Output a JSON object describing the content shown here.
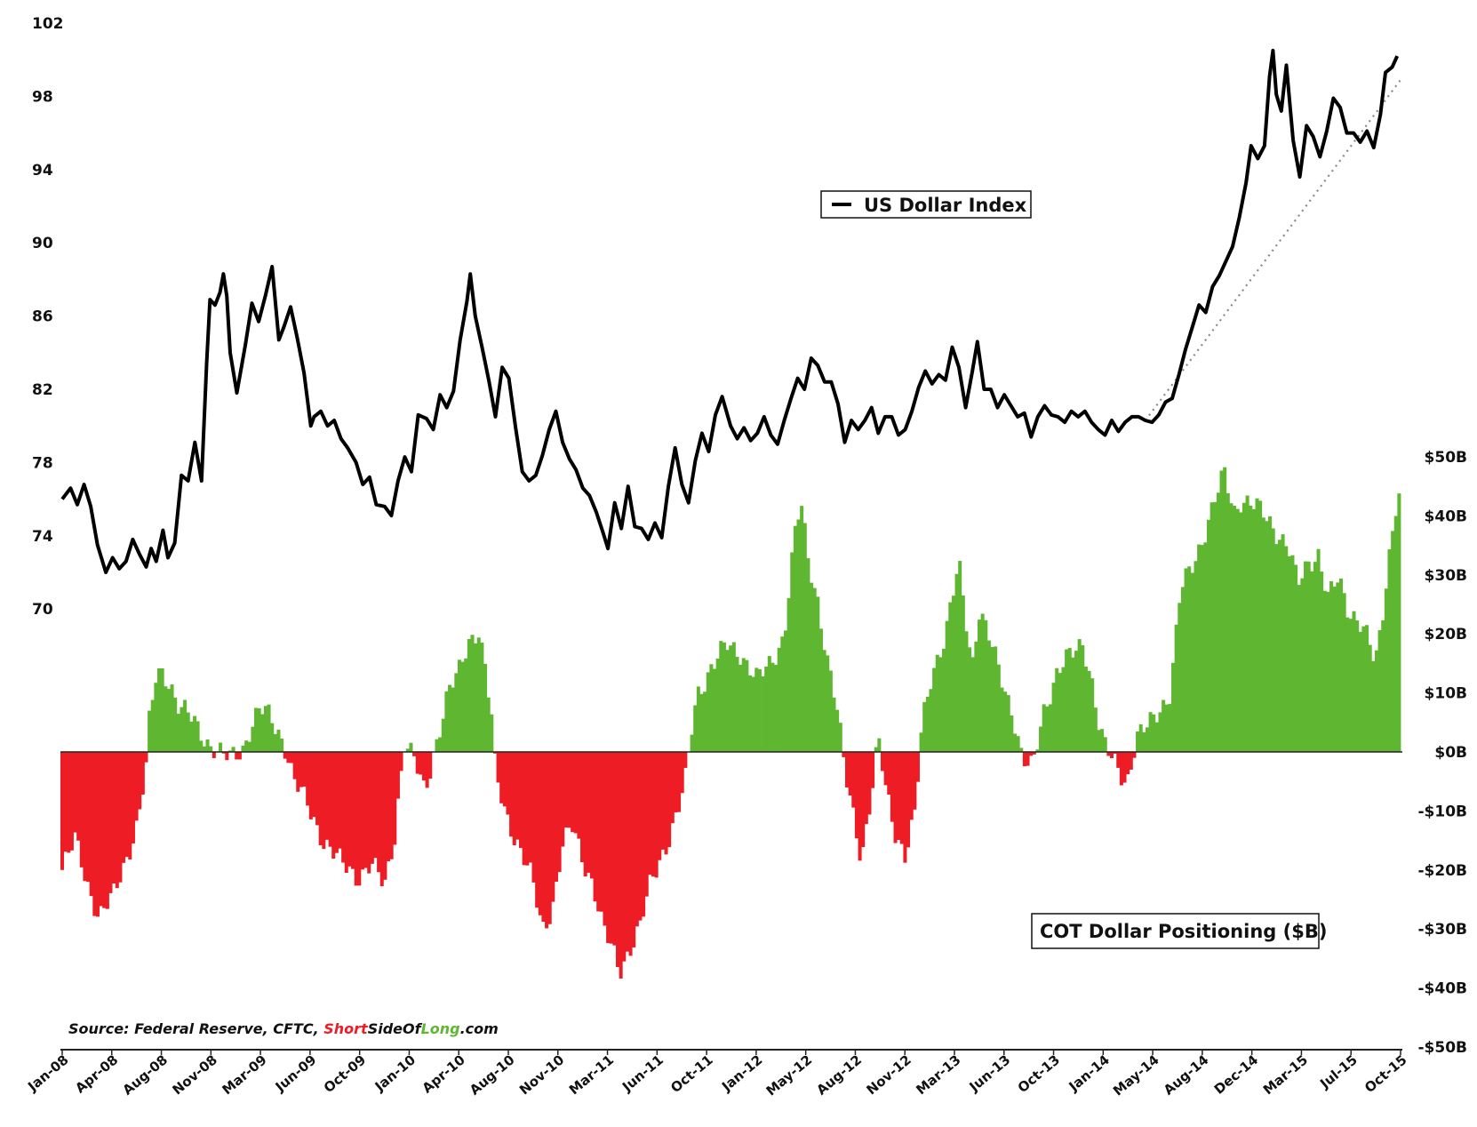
{
  "source": {
    "prefix": "Source: Federal Reserve, CFTC, ",
    "brand_part1": "Short",
    "brand_part2": "SideOf",
    "brand_part3": "Long",
    "brand_part4": ".com"
  },
  "colors": {
    "line": "#000000",
    "positive_bar": "#5fb731",
    "negative_bar": "#ee1c25",
    "trend": "#888888",
    "brand_red": "#ee1c25",
    "brand_green": "#5fb731"
  },
  "chart_data": {
    "type": "line+bar",
    "legend_line": "US Dollar Index",
    "legend_bar": "COT Dollar Positioning ($B)",
    "x_ticks": [
      "Jan-08",
      "Apr-08",
      "Aug-08",
      "Nov-08",
      "Mar-09",
      "Jun-09",
      "Oct-09",
      "Jan-10",
      "Apr-10",
      "Aug-10",
      "Nov-10",
      "Mar-11",
      "Jun-11",
      "Oct-11",
      "Jan-12",
      "May-12",
      "Aug-12",
      "Nov-12",
      "Mar-13",
      "Jun-13",
      "Oct-13",
      "Jan-14",
      "May-14",
      "Aug-14",
      "Dec-14",
      "Mar-15",
      "Jul-15",
      "Oct-15"
    ],
    "y_left_ticks": [
      "102",
      "98",
      "94",
      "90",
      "86",
      "82",
      "78",
      "74",
      "70"
    ],
    "y_left_range": [
      70,
      102
    ],
    "y_right_ticks": [
      "$50B",
      "$40B",
      "$30B",
      "$20B",
      "$10B",
      "$0B",
      "-$10B",
      "-$20B",
      "-$30B",
      "-$40B",
      "-$50B"
    ],
    "y_right_range": [
      -50,
      50
    ],
    "trend_line": {
      "from": {
        "x": 2014.45,
        "y": 80.3
      },
      "to": {
        "x": 2015.97,
        "y": 98.9
      }
    },
    "dollar_index": [
      [
        2008.0,
        76.0
      ],
      [
        2008.05,
        76.6
      ],
      [
        2008.09,
        75.7
      ],
      [
        2008.13,
        76.8
      ],
      [
        2008.17,
        75.6
      ],
      [
        2008.21,
        73.5
      ],
      [
        2008.26,
        72.0
      ],
      [
        2008.3,
        72.8
      ],
      [
        2008.34,
        72.2
      ],
      [
        2008.38,
        72.6
      ],
      [
        2008.42,
        73.8
      ],
      [
        2008.46,
        73.0
      ],
      [
        2008.5,
        72.3
      ],
      [
        2008.53,
        73.3
      ],
      [
        2008.56,
        72.6
      ],
      [
        2008.6,
        74.3
      ],
      [
        2008.63,
        72.8
      ],
      [
        2008.67,
        73.6
      ],
      [
        2008.71,
        77.3
      ],
      [
        2008.75,
        77.0
      ],
      [
        2008.79,
        79.1
      ],
      [
        2008.83,
        77.0
      ],
      [
        2008.86,
        83.4
      ],
      [
        2008.88,
        86.9
      ],
      [
        2008.91,
        86.6
      ],
      [
        2008.94,
        87.3
      ],
      [
        2008.96,
        88.3
      ],
      [
        2008.98,
        87.1
      ],
      [
        2009.0,
        84.0
      ],
      [
        2009.04,
        81.8
      ],
      [
        2009.09,
        84.4
      ],
      [
        2009.13,
        86.7
      ],
      [
        2009.17,
        85.7
      ],
      [
        2009.21,
        87.1
      ],
      [
        2009.25,
        88.7
      ],
      [
        2009.29,
        84.7
      ],
      [
        2009.32,
        85.4
      ],
      [
        2009.36,
        86.5
      ],
      [
        2009.4,
        84.8
      ],
      [
        2009.44,
        82.9
      ],
      [
        2009.48,
        80.0
      ],
      [
        2009.5,
        80.5
      ],
      [
        2009.54,
        80.8
      ],
      [
        2009.58,
        80.0
      ],
      [
        2009.62,
        80.3
      ],
      [
        2009.66,
        79.3
      ],
      [
        2009.7,
        78.8
      ],
      [
        2009.75,
        78.0
      ],
      [
        2009.79,
        76.8
      ],
      [
        2009.83,
        77.2
      ],
      [
        2009.87,
        75.7
      ],
      [
        2009.92,
        75.6
      ],
      [
        2009.96,
        75.1
      ],
      [
        2010.0,
        77.0
      ],
      [
        2010.04,
        78.3
      ],
      [
        2010.08,
        77.5
      ],
      [
        2010.12,
        80.6
      ],
      [
        2010.17,
        80.4
      ],
      [
        2010.21,
        79.8
      ],
      [
        2010.25,
        81.7
      ],
      [
        2010.29,
        81.0
      ],
      [
        2010.33,
        81.9
      ],
      [
        2010.37,
        84.7
      ],
      [
        2010.41,
        86.8
      ],
      [
        2010.43,
        88.3
      ],
      [
        2010.46,
        86.0
      ],
      [
        2010.5,
        84.3
      ],
      [
        2010.54,
        82.5
      ],
      [
        2010.58,
        80.5
      ],
      [
        2010.62,
        83.2
      ],
      [
        2010.66,
        82.6
      ],
      [
        2010.7,
        79.9
      ],
      [
        2010.74,
        77.5
      ],
      [
        2010.78,
        77.0
      ],
      [
        2010.82,
        77.3
      ],
      [
        2010.86,
        78.4
      ],
      [
        2010.9,
        79.8
      ],
      [
        2010.94,
        80.8
      ],
      [
        2010.98,
        79.1
      ],
      [
        2011.02,
        78.2
      ],
      [
        2011.06,
        77.6
      ],
      [
        2011.1,
        76.6
      ],
      [
        2011.14,
        76.2
      ],
      [
        2011.18,
        75.3
      ],
      [
        2011.22,
        74.2
      ],
      [
        2011.25,
        73.3
      ],
      [
        2011.29,
        75.8
      ],
      [
        2011.33,
        74.4
      ],
      [
        2011.37,
        76.7
      ],
      [
        2011.41,
        74.5
      ],
      [
        2011.45,
        74.4
      ],
      [
        2011.49,
        73.8
      ],
      [
        2011.53,
        74.7
      ],
      [
        2011.57,
        73.9
      ],
      [
        2011.61,
        76.7
      ],
      [
        2011.65,
        78.8
      ],
      [
        2011.69,
        76.8
      ],
      [
        2011.73,
        75.8
      ],
      [
        2011.77,
        78.1
      ],
      [
        2011.81,
        79.6
      ],
      [
        2011.85,
        78.6
      ],
      [
        2011.89,
        80.6
      ],
      [
        2011.93,
        81.6
      ],
      [
        2011.98,
        80.0
      ],
      [
        2012.02,
        79.3
      ],
      [
        2012.06,
        79.9
      ],
      [
        2012.1,
        79.2
      ],
      [
        2012.14,
        79.6
      ],
      [
        2012.18,
        80.5
      ],
      [
        2012.22,
        79.5
      ],
      [
        2012.26,
        79.0
      ],
      [
        2012.3,
        80.3
      ],
      [
        2012.34,
        81.5
      ],
      [
        2012.38,
        82.6
      ],
      [
        2012.42,
        82.0
      ],
      [
        2012.46,
        83.7
      ],
      [
        2012.5,
        83.3
      ],
      [
        2012.54,
        82.4
      ],
      [
        2012.58,
        82.4
      ],
      [
        2012.62,
        81.2
      ],
      [
        2012.66,
        79.1
      ],
      [
        2012.7,
        80.3
      ],
      [
        2012.74,
        79.8
      ],
      [
        2012.78,
        80.3
      ],
      [
        2012.82,
        81.0
      ],
      [
        2012.86,
        79.6
      ],
      [
        2012.9,
        80.5
      ],
      [
        2012.94,
        80.5
      ],
      [
        2012.98,
        79.5
      ],
      [
        2013.02,
        79.8
      ],
      [
        2013.06,
        80.8
      ],
      [
        2013.1,
        82.1
      ],
      [
        2013.14,
        83.0
      ],
      [
        2013.18,
        82.3
      ],
      [
        2013.22,
        82.8
      ],
      [
        2013.26,
        82.5
      ],
      [
        2013.3,
        84.3
      ],
      [
        2013.34,
        83.2
      ],
      [
        2013.38,
        81.0
      ],
      [
        2013.42,
        83.0
      ],
      [
        2013.45,
        84.6
      ],
      [
        2013.49,
        82.0
      ],
      [
        2013.53,
        82.0
      ],
      [
        2013.57,
        81.0
      ],
      [
        2013.61,
        81.7
      ],
      [
        2013.65,
        81.1
      ],
      [
        2013.69,
        80.5
      ],
      [
        2013.73,
        80.7
      ],
      [
        2013.77,
        79.4
      ],
      [
        2013.81,
        80.5
      ],
      [
        2013.85,
        81.1
      ],
      [
        2013.89,
        80.6
      ],
      [
        2013.93,
        80.5
      ],
      [
        2013.97,
        80.2
      ],
      [
        2014.01,
        80.8
      ],
      [
        2014.05,
        80.5
      ],
      [
        2014.09,
        80.8
      ],
      [
        2014.13,
        80.2
      ],
      [
        2014.17,
        79.8
      ],
      [
        2014.21,
        79.5
      ],
      [
        2014.25,
        80.3
      ],
      [
        2014.29,
        79.7
      ],
      [
        2014.33,
        80.2
      ],
      [
        2014.37,
        80.5
      ],
      [
        2014.41,
        80.5
      ],
      [
        2014.45,
        80.3
      ],
      [
        2014.49,
        80.2
      ],
      [
        2014.53,
        80.6
      ],
      [
        2014.57,
        81.3
      ],
      [
        2014.61,
        81.5
      ],
      [
        2014.65,
        82.8
      ],
      [
        2014.69,
        84.2
      ],
      [
        2014.73,
        85.4
      ],
      [
        2014.77,
        86.6
      ],
      [
        2014.81,
        86.2
      ],
      [
        2014.85,
        87.6
      ],
      [
        2014.89,
        88.2
      ],
      [
        2014.93,
        89.0
      ],
      [
        2014.97,
        89.8
      ],
      [
        2015.01,
        91.4
      ],
      [
        2015.05,
        93.3
      ],
      [
        2015.08,
        95.3
      ],
      [
        2015.12,
        94.6
      ],
      [
        2015.16,
        95.3
      ],
      [
        2015.19,
        99.1
      ],
      [
        2015.21,
        100.5
      ],
      [
        2015.23,
        98.1
      ],
      [
        2015.26,
        97.2
      ],
      [
        2015.29,
        99.7
      ],
      [
        2015.33,
        95.6
      ],
      [
        2015.37,
        93.6
      ],
      [
        2015.41,
        96.4
      ],
      [
        2015.45,
        95.8
      ],
      [
        2015.49,
        94.7
      ],
      [
        2015.53,
        96.1
      ],
      [
        2015.57,
        97.9
      ],
      [
        2015.61,
        97.4
      ],
      [
        2015.65,
        96.0
      ],
      [
        2015.69,
        96.0
      ],
      [
        2015.73,
        95.5
      ],
      [
        2015.77,
        96.1
      ],
      [
        2015.81,
        95.2
      ],
      [
        2015.85,
        97.0
      ],
      [
        2015.88,
        99.3
      ],
      [
        2015.92,
        99.6
      ],
      [
        2015.95,
        100.2
      ]
    ],
    "cot_positioning": [
      [
        2008.0,
        -20
      ],
      [
        2008.08,
        -15
      ],
      [
        2008.15,
        -22
      ],
      [
        2008.22,
        -28
      ],
      [
        2008.3,
        -25
      ],
      [
        2008.38,
        -18
      ],
      [
        2008.45,
        -12
      ],
      [
        2008.5,
        -3
      ],
      [
        2008.52,
        5
      ],
      [
        2008.56,
        13
      ],
      [
        2008.6,
        14
      ],
      [
        2008.64,
        12
      ],
      [
        2008.7,
        7
      ],
      [
        2008.76,
        6
      ],
      [
        2008.82,
        4
      ],
      [
        2008.86,
        2
      ],
      [
        2008.92,
        0
      ],
      [
        2008.96,
        -1
      ],
      [
        2009.0,
        -1
      ],
      [
        2009.04,
        0
      ],
      [
        2009.08,
        1
      ],
      [
        2009.12,
        4
      ],
      [
        2009.18,
        7
      ],
      [
        2009.24,
        6
      ],
      [
        2009.3,
        3
      ],
      [
        2009.34,
        0
      ],
      [
        2009.38,
        -5
      ],
      [
        2009.46,
        -9
      ],
      [
        2009.56,
        -15
      ],
      [
        2009.66,
        -19
      ],
      [
        2009.76,
        -21
      ],
      [
        2009.84,
        -19
      ],
      [
        2009.92,
        -23
      ],
      [
        2009.98,
        -14
      ],
      [
        2010.0,
        -8
      ],
      [
        2010.04,
        2
      ],
      [
        2010.1,
        -2
      ],
      [
        2010.16,
        -7
      ],
      [
        2010.22,
        1
      ],
      [
        2010.3,
        10
      ],
      [
        2010.36,
        13
      ],
      [
        2010.42,
        19
      ],
      [
        2010.48,
        21
      ],
      [
        2010.52,
        14
      ],
      [
        2010.56,
        5
      ],
      [
        2010.58,
        -4
      ],
      [
        2010.64,
        -10
      ],
      [
        2010.72,
        -16
      ],
      [
        2010.8,
        -22
      ],
      [
        2010.86,
        -30
      ],
      [
        2010.92,
        -26
      ],
      [
        2010.98,
        -16
      ],
      [
        2011.04,
        -13
      ],
      [
        2011.1,
        -18
      ],
      [
        2011.16,
        -22
      ],
      [
        2011.22,
        -30
      ],
      [
        2011.28,
        -34
      ],
      [
        2011.32,
        -37
      ],
      [
        2011.38,
        -33
      ],
      [
        2011.44,
        -30
      ],
      [
        2011.5,
        -23
      ],
      [
        2011.56,
        -18
      ],
      [
        2011.62,
        -14
      ],
      [
        2011.68,
        -9
      ],
      [
        2011.72,
        -4
      ],
      [
        2011.74,
        2
      ],
      [
        2011.78,
        10
      ],
      [
        2011.86,
        14
      ],
      [
        2011.96,
        18
      ],
      [
        2012.04,
        17
      ],
      [
        2012.14,
        12
      ],
      [
        2012.22,
        15
      ],
      [
        2012.3,
        20
      ],
      [
        2012.36,
        36
      ],
      [
        2012.4,
        42
      ],
      [
        2012.44,
        33
      ],
      [
        2012.5,
        26
      ],
      [
        2012.56,
        15
      ],
      [
        2012.62,
        6
      ],
      [
        2012.66,
        -3
      ],
      [
        2012.7,
        -8
      ],
      [
        2012.76,
        -18
      ],
      [
        2012.82,
        -8
      ],
      [
        2012.86,
        2
      ],
      [
        2012.9,
        -5
      ],
      [
        2012.96,
        -13
      ],
      [
        2013.02,
        -18
      ],
      [
        2013.08,
        -11
      ],
      [
        2013.12,
        5
      ],
      [
        2013.18,
        14
      ],
      [
        2013.26,
        19
      ],
      [
        2013.34,
        32
      ],
      [
        2013.42,
        15
      ],
      [
        2013.46,
        24
      ],
      [
        2013.52,
        19
      ],
      [
        2013.58,
        14
      ],
      [
        2013.66,
        7
      ],
      [
        2013.72,
        -2
      ],
      [
        2013.78,
        -3
      ],
      [
        2013.84,
        7
      ],
      [
        2013.92,
        13
      ],
      [
        2014.0,
        16
      ],
      [
        2014.08,
        19
      ],
      [
        2014.14,
        11
      ],
      [
        2014.18,
        3
      ],
      [
        2014.22,
        0
      ],
      [
        2014.28,
        -2
      ],
      [
        2014.34,
        -5
      ],
      [
        2014.4,
        2
      ],
      [
        2014.46,
        4
      ],
      [
        2014.52,
        7
      ],
      [
        2014.6,
        10
      ],
      [
        2014.66,
        27
      ],
      [
        2014.72,
        31
      ],
      [
        2014.8,
        37
      ],
      [
        2014.86,
        42
      ],
      [
        2014.92,
        47
      ],
      [
        2014.98,
        41
      ],
      [
        2015.02,
        43
      ],
      [
        2015.08,
        42
      ],
      [
        2015.16,
        40
      ],
      [
        2015.22,
        38
      ],
      [
        2015.3,
        35
      ],
      [
        2015.36,
        28
      ],
      [
        2015.42,
        32
      ],
      [
        2015.48,
        34
      ],
      [
        2015.54,
        26
      ],
      [
        2015.6,
        29
      ],
      [
        2015.66,
        24
      ],
      [
        2015.72,
        23
      ],
      [
        2015.78,
        19
      ],
      [
        2015.82,
        14
      ],
      [
        2015.86,
        22
      ],
      [
        2015.9,
        33
      ],
      [
        2015.94,
        42
      ],
      [
        2015.97,
        45
      ]
    ]
  }
}
